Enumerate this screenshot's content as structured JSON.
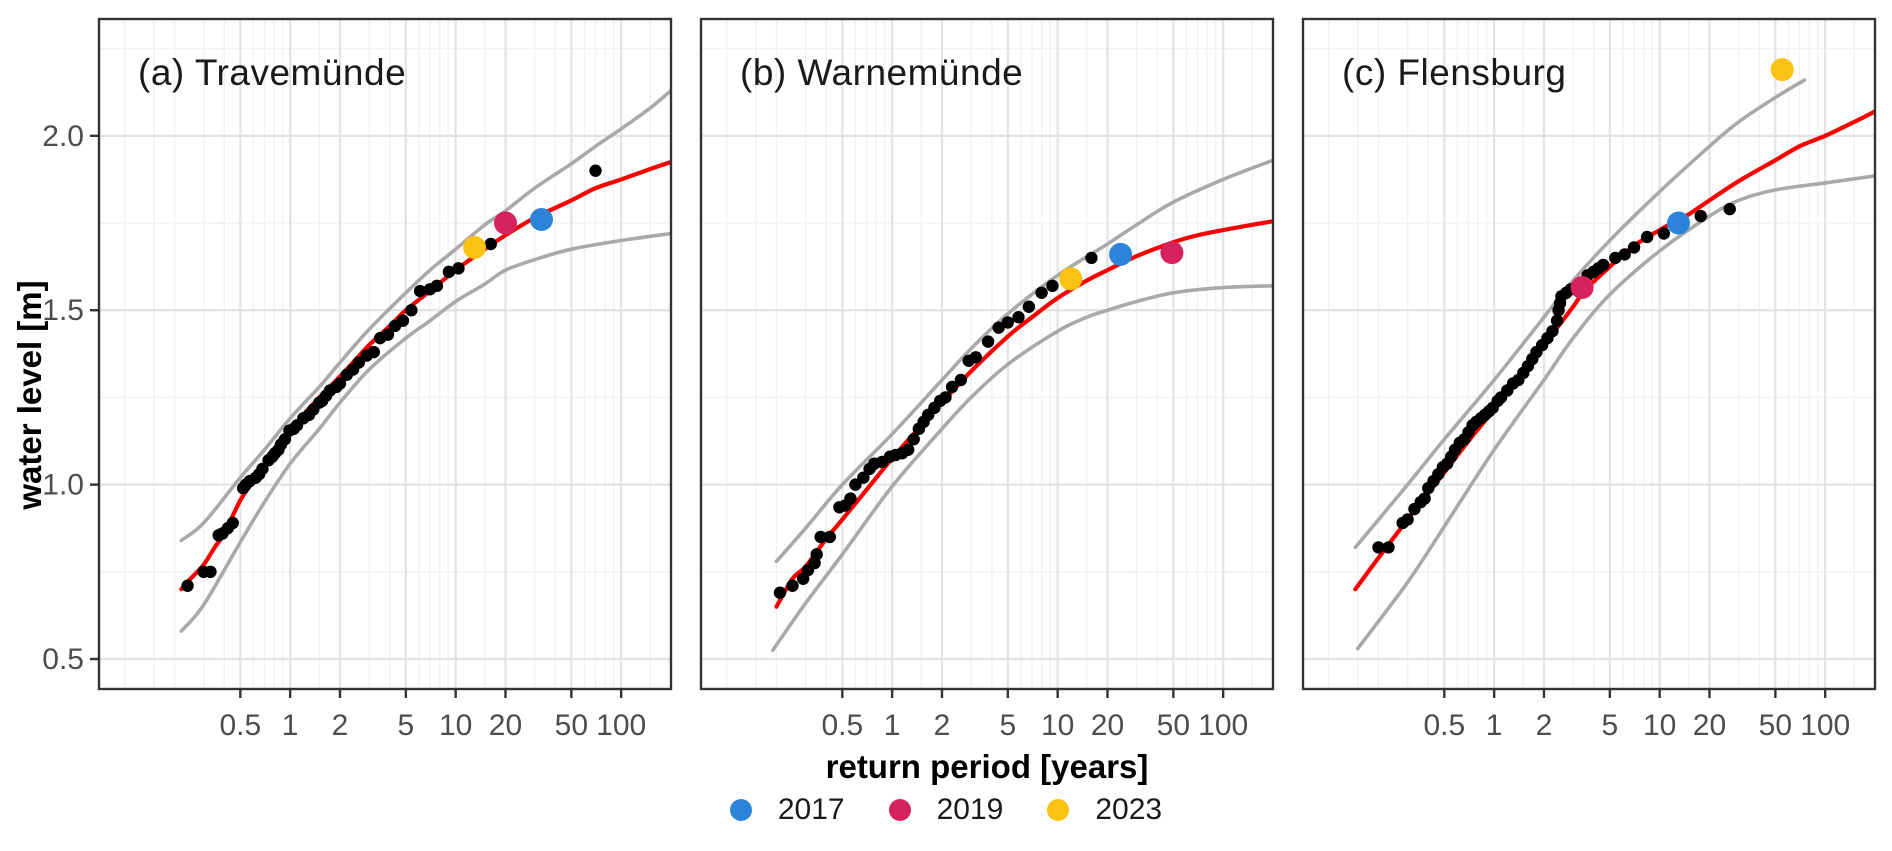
{
  "figure": {
    "y_axis": {
      "label": "water level [m]",
      "tick_values": [
        0.5,
        1.0,
        1.5,
        2.0
      ],
      "tick_labels": [
        "0.5",
        "1.0",
        "1.5",
        "2.0"
      ],
      "minor_gridlines": [
        0.75,
        1.25,
        1.75,
        2.25
      ],
      "range": [
        0.414,
        2.335
      ]
    },
    "x_axis": {
      "label": "return period [years]",
      "scale": "log10",
      "tick_values": [
        0.5,
        1,
        2,
        5,
        10,
        20,
        50,
        100
      ],
      "tick_labels": [
        "0.5",
        "1",
        "2",
        "5",
        "10",
        "20",
        "50",
        "100"
      ],
      "minor_gridlines": [
        0.1,
        0.15,
        0.2,
        0.3,
        0.4,
        0.6,
        0.7,
        0.8,
        0.9,
        1.5,
        3,
        4,
        6,
        7,
        8,
        9,
        15,
        30,
        40,
        60,
        70,
        80,
        90,
        150
      ],
      "range": [
        0.07,
        200
      ]
    },
    "legend": [
      {
        "label": "2017",
        "color": "#2B84D8"
      },
      {
        "label": "2019",
        "color": "#D62360"
      },
      {
        "label": "2023",
        "color": "#FCC211"
      }
    ],
    "colors": {
      "fit_line": "#F80000",
      "confidence_band": "#A9A9A9",
      "observations": "#000000",
      "grid_major": "#E3E3E3",
      "grid_minor": "#F1F1F1",
      "panel_border": "#333333",
      "tick_text": "#4D4D4D"
    }
  },
  "chart_data": [
    {
      "type": "scatter",
      "title": "(a) Travemünde",
      "xlabel": "return period [years]",
      "ylabel": "water level [m]",
      "fit_line": [
        [
          0.22,
          0.7
        ],
        [
          0.25,
          0.73
        ],
        [
          0.3,
          0.77
        ],
        [
          0.35,
          0.82
        ],
        [
          0.4,
          0.86
        ],
        [
          0.5,
          0.955
        ],
        [
          0.6,
          1.01
        ],
        [
          0.7,
          1.055
        ],
        [
          0.8,
          1.09
        ],
        [
          1.0,
          1.155
        ],
        [
          1.2,
          1.2
        ],
        [
          1.5,
          1.25
        ],
        [
          2,
          1.31
        ],
        [
          3,
          1.4
        ],
        [
          4,
          1.455
        ],
        [
          5,
          1.5
        ],
        [
          7,
          1.555
        ],
        [
          10,
          1.615
        ],
        [
          15,
          1.675
        ],
        [
          20,
          1.715
        ],
        [
          30,
          1.765
        ],
        [
          50,
          1.815
        ],
        [
          70,
          1.85
        ],
        [
          100,
          1.875
        ],
        [
          150,
          1.905
        ],
        [
          200,
          1.925
        ]
      ],
      "ci_upper": [
        [
          0.22,
          0.84
        ],
        [
          0.3,
          0.89
        ],
        [
          0.5,
          1.02
        ],
        [
          0.7,
          1.1
        ],
        [
          1,
          1.19
        ],
        [
          1.5,
          1.28
        ],
        [
          2,
          1.35
        ],
        [
          3,
          1.445
        ],
        [
          5,
          1.55
        ],
        [
          7,
          1.615
        ],
        [
          10,
          1.675
        ],
        [
          15,
          1.745
        ],
        [
          20,
          1.785
        ],
        [
          30,
          1.85
        ],
        [
          50,
          1.92
        ],
        [
          70,
          1.97
        ],
        [
          100,
          2.02
        ],
        [
          150,
          2.08
        ],
        [
          200,
          2.13
        ]
      ],
      "ci_lower": [
        [
          0.22,
          0.58
        ],
        [
          0.3,
          0.655
        ],
        [
          0.5,
          0.835
        ],
        [
          0.7,
          0.95
        ],
        [
          1,
          1.06
        ],
        [
          1.5,
          1.16
        ],
        [
          2,
          1.235
        ],
        [
          3,
          1.33
        ],
        [
          5,
          1.42
        ],
        [
          7,
          1.47
        ],
        [
          10,
          1.525
        ],
        [
          15,
          1.575
        ],
        [
          20,
          1.615
        ],
        [
          30,
          1.645
        ],
        [
          50,
          1.675
        ],
        [
          100,
          1.7
        ],
        [
          200,
          1.72
        ]
      ],
      "observations": [
        [
          0.24,
          0.71
        ],
        [
          0.3,
          0.75
        ],
        [
          0.33,
          0.75
        ],
        [
          0.37,
          0.855
        ],
        [
          0.39,
          0.86
        ],
        [
          0.42,
          0.875
        ],
        [
          0.45,
          0.89
        ],
        [
          0.52,
          0.99
        ],
        [
          0.54,
          1.0
        ],
        [
          0.57,
          1.01
        ],
        [
          0.62,
          1.02
        ],
        [
          0.65,
          1.03
        ],
        [
          0.68,
          1.045
        ],
        [
          0.74,
          1.07
        ],
        [
          0.78,
          1.08
        ],
        [
          0.81,
          1.09
        ],
        [
          0.85,
          1.1
        ],
        [
          0.88,
          1.115
        ],
        [
          0.93,
          1.13
        ],
        [
          0.99,
          1.155
        ],
        [
          1.05,
          1.16
        ],
        [
          1.1,
          1.17
        ],
        [
          1.2,
          1.19
        ],
        [
          1.3,
          1.2
        ],
        [
          1.38,
          1.215
        ],
        [
          1.5,
          1.235
        ],
        [
          1.56,
          1.24
        ],
        [
          1.65,
          1.255
        ],
        [
          1.74,
          1.27
        ],
        [
          1.9,
          1.28
        ],
        [
          2.0,
          1.29
        ],
        [
          2.2,
          1.315
        ],
        [
          2.4,
          1.33
        ],
        [
          2.6,
          1.35
        ],
        [
          2.9,
          1.37
        ],
        [
          3.2,
          1.38
        ],
        [
          3.5,
          1.42
        ],
        [
          3.9,
          1.43
        ],
        [
          4.3,
          1.455
        ],
        [
          4.8,
          1.47
        ],
        [
          5.4,
          1.5
        ],
        [
          6.1,
          1.555
        ],
        [
          7.0,
          1.56
        ],
        [
          7.7,
          1.57
        ],
        [
          9.1,
          1.61
        ],
        [
          10.4,
          1.62
        ],
        [
          16.3,
          1.69
        ],
        [
          70,
          1.9
        ]
      ],
      "events": [
        {
          "year": "2017",
          "point": [
            33,
            1.76
          ]
        },
        {
          "year": "2019",
          "point": [
            20,
            1.75
          ]
        },
        {
          "year": "2023",
          "point": [
            13,
            1.68
          ]
        }
      ]
    },
    {
      "type": "scatter",
      "title": "(b) Warnemünde",
      "xlabel": "return period [years]",
      "ylabel": "water level [m]",
      "fit_line": [
        [
          0.2,
          0.65
        ],
        [
          0.25,
          0.73
        ],
        [
          0.3,
          0.765
        ],
        [
          0.4,
          0.845
        ],
        [
          0.5,
          0.9
        ],
        [
          0.7,
          0.985
        ],
        [
          1,
          1.075
        ],
        [
          1.5,
          1.17
        ],
        [
          2,
          1.235
        ],
        [
          3,
          1.325
        ],
        [
          5,
          1.425
        ],
        [
          7,
          1.48
        ],
        [
          10,
          1.535
        ],
        [
          15,
          1.585
        ],
        [
          20,
          1.615
        ],
        [
          30,
          1.655
        ],
        [
          50,
          1.695
        ],
        [
          70,
          1.715
        ],
        [
          100,
          1.73
        ],
        [
          150,
          1.745
        ],
        [
          200,
          1.755
        ]
      ],
      "ci_upper": [
        [
          0.2,
          0.78
        ],
        [
          0.3,
          0.875
        ],
        [
          0.5,
          1.0
        ],
        [
          1,
          1.145
        ],
        [
          2,
          1.3
        ],
        [
          3,
          1.39
        ],
        [
          5,
          1.49
        ],
        [
          10,
          1.6
        ],
        [
          20,
          1.69
        ],
        [
          30,
          1.745
        ],
        [
          50,
          1.81
        ],
        [
          100,
          1.875
        ],
        [
          200,
          1.93
        ]
      ],
      "ci_lower": [
        [
          0.19,
          0.525
        ],
        [
          0.3,
          0.66
        ],
        [
          0.5,
          0.8
        ],
        [
          1,
          0.995
        ],
        [
          2,
          1.16
        ],
        [
          3,
          1.25
        ],
        [
          5,
          1.345
        ],
        [
          10,
          1.44
        ],
        [
          15,
          1.48
        ],
        [
          20,
          1.5
        ],
        [
          30,
          1.525
        ],
        [
          50,
          1.55
        ],
        [
          100,
          1.565
        ],
        [
          200,
          1.57
        ]
      ],
      "observations": [
        [
          0.21,
          0.69
        ],
        [
          0.25,
          0.71
        ],
        [
          0.29,
          0.73
        ],
        [
          0.31,
          0.755
        ],
        [
          0.34,
          0.775
        ],
        [
          0.35,
          0.8
        ],
        [
          0.37,
          0.85
        ],
        [
          0.42,
          0.85
        ],
        [
          0.48,
          0.935
        ],
        [
          0.52,
          0.94
        ],
        [
          0.56,
          0.96
        ],
        [
          0.6,
          1.0
        ],
        [
          0.67,
          1.02
        ],
        [
          0.73,
          1.045
        ],
        [
          0.78,
          1.06
        ],
        [
          0.87,
          1.065
        ],
        [
          0.97,
          1.08
        ],
        [
          1.05,
          1.085
        ],
        [
          1.15,
          1.09
        ],
        [
          1.25,
          1.1
        ],
        [
          1.35,
          1.13
        ],
        [
          1.45,
          1.16
        ],
        [
          1.55,
          1.18
        ],
        [
          1.65,
          1.2
        ],
        [
          1.8,
          1.22
        ],
        [
          1.95,
          1.24
        ],
        [
          2.1,
          1.25
        ],
        [
          2.3,
          1.28
        ],
        [
          2.6,
          1.3
        ],
        [
          2.9,
          1.355
        ],
        [
          3.2,
          1.365
        ],
        [
          3.8,
          1.41
        ],
        [
          4.4,
          1.45
        ],
        [
          5.0,
          1.465
        ],
        [
          5.8,
          1.48
        ],
        [
          6.7,
          1.51
        ],
        [
          8.0,
          1.55
        ],
        [
          9.3,
          1.57
        ],
        [
          16,
          1.65
        ]
      ],
      "events": [
        {
          "year": "2017",
          "point": [
            24,
            1.66
          ]
        },
        {
          "year": "2019",
          "point": [
            49,
            1.665
          ]
        },
        {
          "year": "2023",
          "point": [
            12,
            1.59
          ]
        }
      ]
    },
    {
      "type": "scatter",
      "title": "(c) Flensburg",
      "xlabel": "return period [years]",
      "ylabel": "water level [m]",
      "fit_line": [
        [
          0.145,
          0.7
        ],
        [
          0.2,
          0.79
        ],
        [
          0.3,
          0.9
        ],
        [
          0.4,
          0.975
        ],
        [
          0.5,
          1.035
        ],
        [
          0.7,
          1.125
        ],
        [
          1,
          1.215
        ],
        [
          1.5,
          1.32
        ],
        [
          2,
          1.4
        ],
        [
          3,
          1.51
        ],
        [
          3.5,
          1.555
        ],
        [
          5,
          1.625
        ],
        [
          7,
          1.685
        ],
        [
          10,
          1.73
        ],
        [
          13,
          1.76
        ],
        [
          15,
          1.775
        ],
        [
          20,
          1.815
        ],
        [
          30,
          1.87
        ],
        [
          50,
          1.93
        ],
        [
          70,
          1.97
        ],
        [
          100,
          2.0
        ],
        [
          150,
          2.04
        ],
        [
          200,
          2.07
        ]
      ],
      "ci_upper": [
        [
          0.145,
          0.82
        ],
        [
          0.3,
          1.0
        ],
        [
          0.5,
          1.13
        ],
        [
          1,
          1.3
        ],
        [
          2,
          1.48
        ],
        [
          3,
          1.585
        ],
        [
          5,
          1.7
        ],
        [
          10,
          1.84
        ],
        [
          20,
          1.97
        ],
        [
          30,
          2.04
        ],
        [
          50,
          2.11
        ],
        [
          75,
          2.16
        ]
      ],
      "ci_lower": [
        [
          0.15,
          0.53
        ],
        [
          0.3,
          0.72
        ],
        [
          0.5,
          0.88
        ],
        [
          1,
          1.1
        ],
        [
          2,
          1.3
        ],
        [
          3,
          1.42
        ],
        [
          5,
          1.545
        ],
        [
          10,
          1.67
        ],
        [
          20,
          1.77
        ],
        [
          30,
          1.815
        ],
        [
          50,
          1.845
        ],
        [
          100,
          1.865
        ],
        [
          200,
          1.885
        ]
      ],
      "observations": [
        [
          0.2,
          0.82
        ],
        [
          0.23,
          0.82
        ],
        [
          0.28,
          0.89
        ],
        [
          0.3,
          0.9
        ],
        [
          0.33,
          0.93
        ],
        [
          0.36,
          0.95
        ],
        [
          0.38,
          0.96
        ],
        [
          0.4,
          0.99
        ],
        [
          0.43,
          1.01
        ],
        [
          0.46,
          1.03
        ],
        [
          0.49,
          1.05
        ],
        [
          0.52,
          1.06
        ],
        [
          0.55,
          1.08
        ],
        [
          0.58,
          1.1
        ],
        [
          0.62,
          1.12
        ],
        [
          0.66,
          1.13
        ],
        [
          0.7,
          1.15
        ],
        [
          0.74,
          1.17
        ],
        [
          0.78,
          1.18
        ],
        [
          0.83,
          1.19
        ],
        [
          0.88,
          1.2
        ],
        [
          0.93,
          1.21
        ],
        [
          0.98,
          1.22
        ],
        [
          1.05,
          1.24
        ],
        [
          1.1,
          1.25
        ],
        [
          1.2,
          1.27
        ],
        [
          1.3,
          1.29
        ],
        [
          1.4,
          1.3
        ],
        [
          1.5,
          1.32
        ],
        [
          1.6,
          1.34
        ],
        [
          1.7,
          1.36
        ],
        [
          1.8,
          1.38
        ],
        [
          1.95,
          1.4
        ],
        [
          2.1,
          1.42
        ],
        [
          2.25,
          1.44
        ],
        [
          2.4,
          1.47
        ],
        [
          2.45,
          1.5
        ],
        [
          2.5,
          1.52
        ],
        [
          2.55,
          1.54
        ],
        [
          2.73,
          1.55
        ],
        [
          2.9,
          1.56
        ],
        [
          3.1,
          1.56
        ],
        [
          3.67,
          1.6
        ],
        [
          3.98,
          1.61
        ],
        [
          4.26,
          1.62
        ],
        [
          4.56,
          1.63
        ],
        [
          5.4,
          1.65
        ],
        [
          6.15,
          1.66
        ],
        [
          7.0,
          1.68
        ],
        [
          8.4,
          1.71
        ],
        [
          10.6,
          1.72
        ],
        [
          17.7,
          1.77
        ],
        [
          26.5,
          1.79
        ]
      ],
      "events": [
        {
          "year": "2017",
          "point": [
            13,
            1.75
          ]
        },
        {
          "year": "2019",
          "point": [
            3.4,
            1.565
          ]
        },
        {
          "year": "2023",
          "point": [
            55,
            2.19
          ]
        }
      ]
    }
  ]
}
